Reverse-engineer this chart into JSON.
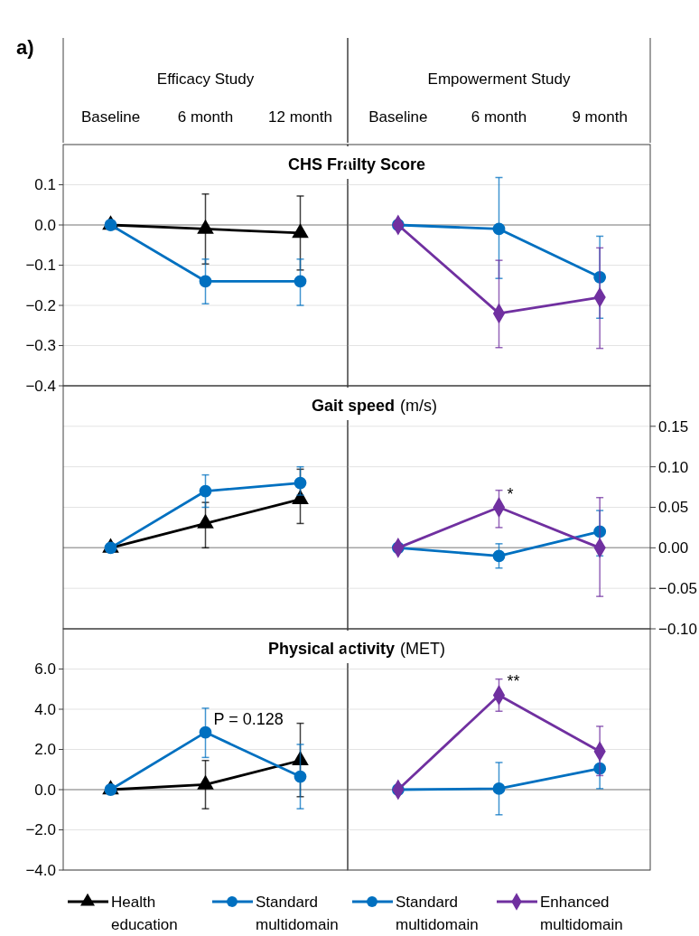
{
  "chart_data": [
    {
      "type": "line",
      "title": "CHS Frailty Score",
      "categories": [
        "Baseline",
        "6 month",
        "12 month"
      ],
      "ylim": [
        -0.4,
        0.2
      ],
      "yticks": [
        {
          "value": -0.4,
          "label": "−0.4"
        },
        {
          "value": -0.3,
          "label": "−0.3"
        },
        {
          "value": -0.2,
          "label": "−0.2"
        },
        {
          "value": -0.1,
          "label": "−0.1"
        },
        {
          "value": 0,
          "label": "0.0"
        },
        {
          "value": 0.1,
          "label": "0.1"
        }
      ],
      "grid": "y",
      "annotations": [
        "a)",
        "Efficacy Study"
      ],
      "series": [
        {
          "color": "#000000",
          "marker": "triangle",
          "values": [
            0,
            -0.01,
            -0.02
          ],
          "errors": [
            null,
            0.087,
            0.092
          ]
        },
        {
          "color": "#0070c0",
          "marker": "circle",
          "values": [
            0,
            -0.14,
            -0.14
          ],
          "errors": [
            null,
            [
              -0.196,
              -0.085
            ],
            [
              -0.2,
              -0.085
            ]
          ]
        }
      ]
    },
    {
      "type": "line",
      "categories": [
        "Baseline",
        "6 month",
        "9 month"
      ],
      "ylim": [
        -0.4,
        0.2
      ],
      "yticks": [
        -0.4,
        -0.3,
        -0.2,
        -0.1,
        0,
        0.1
      ],
      "grid": "y",
      "tick_labels": "x",
      "annotations": [
        "Empowerment Study"
      ],
      "series": [
        {
          "color": "#0070c0",
          "marker": "circle",
          "values": [
            0,
            -0.01,
            -0.13
          ],
          "errors": [
            null,
            [
              -0.133,
              0.118
            ],
            [
              -0.232,
              -0.028
            ]
          ]
        },
        {
          "color": "#7030a0",
          "marker": "diamond",
          "values": [
            0,
            -0.22,
            -0.18
          ],
          "errors": [
            null,
            [
              -0.305,
              -0.088
            ],
            [
              -0.307,
              -0.057
            ]
          ]
        }
      ]
    },
    {
      "type": "line",
      "title": "Gait speed",
      "categories": [
        "Baseline",
        "6 month",
        "12 month"
      ],
      "ylim": [
        -0.1,
        0.2
      ],
      "yticks": [
        -0.1,
        -0.05,
        0,
        0.05,
        0.1,
        0.15
      ],
      "grid": "y",
      "tick_labels": false,
      "series": [
        {
          "color": "#000000",
          "marker": "triangle",
          "values": [
            0,
            0.03,
            0.06
          ],
          "errors": [
            null,
            [
              0.0,
              0.056
            ],
            [
              0.03,
              0.097
            ]
          ]
        },
        {
          "color": "#0070c0",
          "marker": "circle",
          "values": [
            0,
            0.07,
            0.08
          ],
          "errors": [
            null,
            [
              0.05,
              0.09
            ],
            [
              0.065,
              0.1
            ]
          ]
        }
      ]
    },
    {
      "type": "line",
      "subtitle": "(m/s)",
      "categories": [
        "Baseline",
        "6 month",
        "9 month"
      ],
      "ylim": [
        -0.1,
        0.2
      ],
      "yticks": [
        {
          "value": -0.1,
          "label": "−0.10"
        },
        {
          "value": -0.05,
          "label": "−0.05"
        },
        {
          "value": 0,
          "label": "0.00"
        },
        {
          "value": 0.05,
          "label": "0.05"
        },
        {
          "value": 0.1,
          "label": "0.10"
        },
        {
          "value": 0.15,
          "label": "0.15"
        }
      ],
      "grid": "y",
      "tick_labels": "y",
      "annotations": [
        {
          "text": "*",
          "x": "6 month",
          "y": 0.05
        }
      ],
      "series": [
        {
          "color": "#0070c0",
          "marker": "circle",
          "values": [
            0,
            -0.01,
            0.02
          ],
          "errors": [
            null,
            [
              -0.025,
              0.005
            ],
            [
              -0.01,
              0.046
            ]
          ]
        },
        {
          "color": "#7030a0",
          "marker": "diamond",
          "values": [
            0,
            0.05,
            0
          ],
          "errors": [
            null,
            [
              0.025,
              0.071
            ],
            [
              -0.06,
              0.062
            ]
          ]
        }
      ]
    },
    {
      "type": "line",
      "title": "Physical activity",
      "categories": [
        "Baseline",
        "6 month",
        "12 month"
      ],
      "ylim": [
        -4,
        8
      ],
      "yticks": [
        {
          "value": -4,
          "label": "−4.0"
        },
        {
          "value": -2,
          "label": "−2.0"
        },
        {
          "value": 0,
          "label": "0.0"
        },
        {
          "value": 2,
          "label": "2.0"
        },
        {
          "value": 4,
          "label": "4.0"
        },
        {
          "value": 6,
          "label": "6.0"
        }
      ],
      "grid": "y",
      "tick_labels": "y",
      "legend": "bottom",
      "annotations": [
        {
          "text": "P = 0.128",
          "x": "6 month",
          "y": 2.85
        }
      ],
      "series": [
        {
          "name": "Health education",
          "color": "#000000",
          "marker": "triangle",
          "values": [
            0,
            0.25,
            1.45
          ],
          "errors": [
            null,
            1.2,
            [
              -0.35,
              3.3
            ]
          ]
        },
        {
          "name": "Standard multidomain",
          "color": "#0070c0",
          "marker": "circle",
          "values": [
            0,
            2.85,
            0.65
          ],
          "errors": [
            null,
            [
              1.6,
              4.05
            ],
            [
              -0.95,
              2.25
            ]
          ]
        }
      ]
    },
    {
      "type": "line",
      "subtitle": "(MET)",
      "categories": [
        "Baseline",
        "6 month",
        "9 month"
      ],
      "ylim": [
        -4,
        8
      ],
      "yticks": [
        -4,
        -2,
        0,
        2,
        4,
        6
      ],
      "grid": "y",
      "tick_labels": false,
      "legend": "bottom",
      "annotations": [
        {
          "text": "**",
          "x": "6 month",
          "y": 4.7
        }
      ],
      "series": [
        {
          "name": "Standard multidomain",
          "color": "#0070c0",
          "marker": "circle",
          "values": [
            0,
            0.05,
            1.05
          ],
          "errors": [
            null,
            [
              -1.25,
              1.35
            ],
            [
              0.05,
              2.05
            ]
          ]
        },
        {
          "name": "Enhanced multidomain",
          "color": "#7030a0",
          "marker": "diamond",
          "values": [
            0,
            4.7,
            1.9
          ],
          "errors": [
            null,
            [
              3.9,
              5.5
            ],
            [
              0.7,
              3.15
            ]
          ]
        }
      ]
    }
  ]
}
